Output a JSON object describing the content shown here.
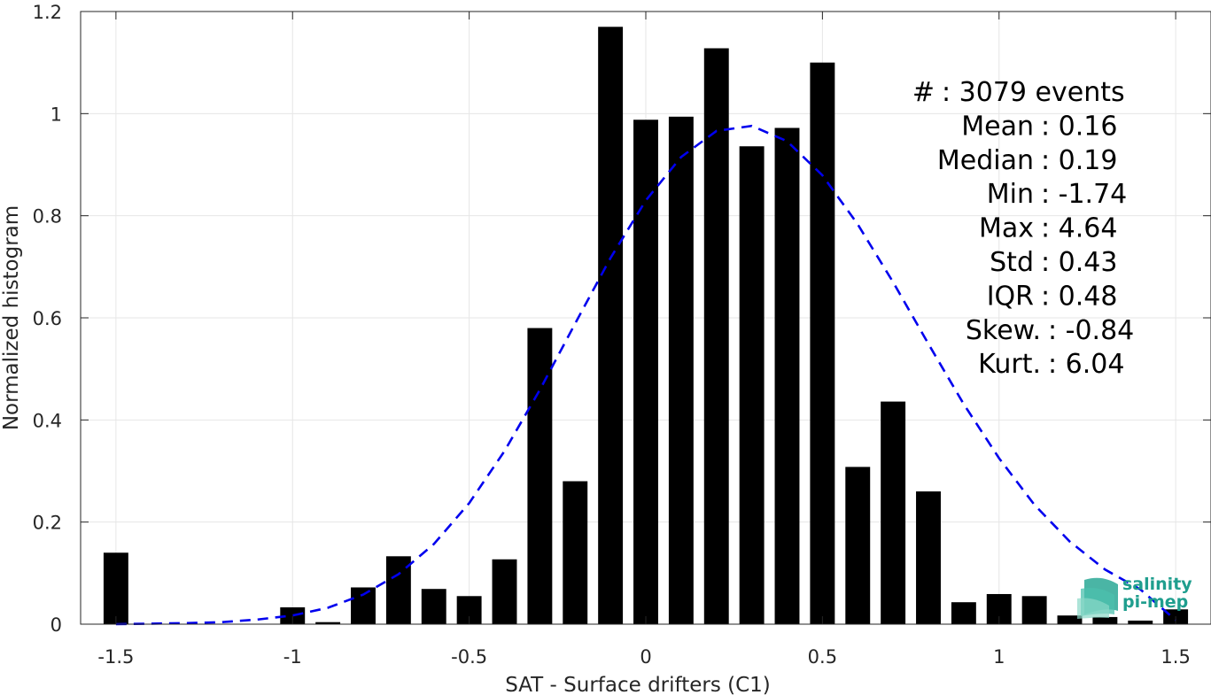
{
  "chart_data": {
    "type": "bar",
    "xlabel": "SAT - Surface drifters (C1)",
    "ylabel": "Normalized histogram",
    "xlim": [
      -1.6,
      1.6
    ],
    "ylim": [
      0,
      1.2
    ],
    "xticks": [
      -1.5,
      -1,
      -0.5,
      0,
      0.5,
      1,
      1.5
    ],
    "xtick_labels": [
      "-1.5",
      "-1",
      "-0.5",
      "0",
      "0.5",
      "1",
      "1.5"
    ],
    "yticks": [
      0,
      0.2,
      0.4,
      0.6,
      0.8,
      1,
      1.2
    ],
    "ytick_labels": [
      "0",
      "0.2",
      "0.4",
      "0.6",
      "0.8",
      "1",
      "1.2"
    ],
    "grid": true,
    "bar_width": 0.07,
    "bar_color": "#000000",
    "bins": [
      {
        "x": -1.5,
        "y": 0.14
      },
      {
        "x": -1.0,
        "y": 0.033
      },
      {
        "x": -0.9,
        "y": 0.004
      },
      {
        "x": -0.8,
        "y": 0.072
      },
      {
        "x": -0.7,
        "y": 0.133
      },
      {
        "x": -0.6,
        "y": 0.069
      },
      {
        "x": -0.5,
        "y": 0.055
      },
      {
        "x": -0.4,
        "y": 0.127
      },
      {
        "x": -0.3,
        "y": 0.58
      },
      {
        "x": -0.2,
        "y": 0.28
      },
      {
        "x": -0.1,
        "y": 1.17
      },
      {
        "x": 0.0,
        "y": 0.988
      },
      {
        "x": 0.1,
        "y": 0.994
      },
      {
        "x": 0.2,
        "y": 1.128
      },
      {
        "x": 0.3,
        "y": 0.936
      },
      {
        "x": 0.4,
        "y": 0.972
      },
      {
        "x": 0.5,
        "y": 1.1
      },
      {
        "x": 0.6,
        "y": 0.308
      },
      {
        "x": 0.7,
        "y": 0.436
      },
      {
        "x": 0.8,
        "y": 0.26
      },
      {
        "x": 0.9,
        "y": 0.043
      },
      {
        "x": 1.0,
        "y": 0.059
      },
      {
        "x": 1.1,
        "y": 0.055
      },
      {
        "x": 1.2,
        "y": 0.017
      },
      {
        "x": 1.3,
        "y": 0.014
      },
      {
        "x": 1.4,
        "y": 0.007
      },
      {
        "x": 1.5,
        "y": 0.029
      }
    ],
    "fit_curve": {
      "style": "dashed",
      "color": "#0000ee",
      "points": [
        [
          -1.5,
          0.0
        ],
        [
          -1.4,
          0.001
        ],
        [
          -1.3,
          0.002
        ],
        [
          -1.2,
          0.004
        ],
        [
          -1.1,
          0.009
        ],
        [
          -1.0,
          0.017
        ],
        [
          -0.9,
          0.032
        ],
        [
          -0.8,
          0.058
        ],
        [
          -0.7,
          0.098
        ],
        [
          -0.6,
          0.157
        ],
        [
          -0.5,
          0.237
        ],
        [
          -0.4,
          0.339
        ],
        [
          -0.3,
          0.459
        ],
        [
          -0.2,
          0.589
        ],
        [
          -0.1,
          0.717
        ],
        [
          0.0,
          0.83
        ],
        [
          0.1,
          0.915
        ],
        [
          0.2,
          0.966
        ],
        [
          0.3,
          0.976
        ],
        [
          0.4,
          0.946
        ],
        [
          0.5,
          0.879
        ],
        [
          0.6,
          0.783
        ],
        [
          0.7,
          0.67
        ],
        [
          0.8,
          0.549
        ],
        [
          0.9,
          0.431
        ],
        [
          1.0,
          0.325
        ],
        [
          1.1,
          0.234
        ],
        [
          1.2,
          0.162
        ],
        [
          1.3,
          0.107
        ],
        [
          1.4,
          0.068
        ],
        [
          1.5,
          0.008
        ]
      ]
    },
    "stats": [
      {
        "label": "#  ",
        "value": "3079 events"
      },
      {
        "label": "Mean",
        "value": "0.16"
      },
      {
        "label": "Median",
        "value": "0.19"
      },
      {
        "label": "Min",
        "value": "-1.74"
      },
      {
        "label": "Max",
        "value": "4.64"
      },
      {
        "label": "Std",
        "value": "0.43"
      },
      {
        "label": "IQR",
        "value": "0.48"
      },
      {
        "label": "Skew.",
        "value": "-0.84"
      },
      {
        "label": "Kurt.",
        "value": "6.04"
      }
    ]
  },
  "logo": {
    "line1": "salinity",
    "line2": "pi-mep",
    "color": "#1f9e8e"
  }
}
